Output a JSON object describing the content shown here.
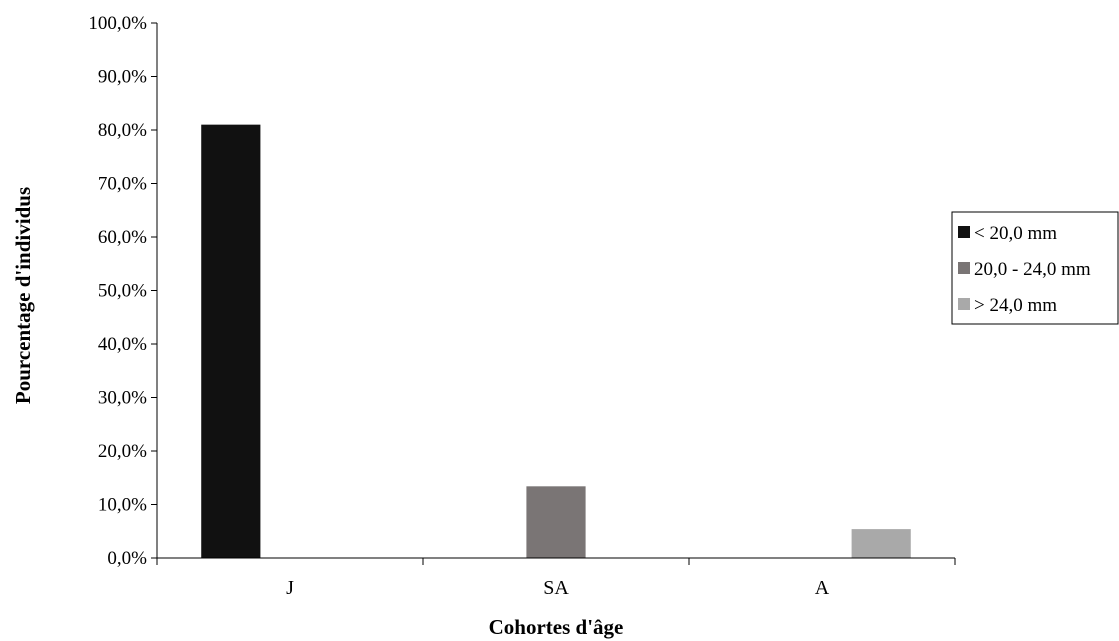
{
  "chart_data": {
    "type": "bar",
    "categories": [
      "J",
      "SA",
      "A"
    ],
    "series": [
      {
        "name": "< 20,0 mm",
        "values": [
          81.0,
          0,
          0
        ],
        "color": "#111111"
      },
      {
        "name": "20,0 - 24,0 mm",
        "values": [
          0,
          13.4,
          0
        ],
        "color": "#7a7575"
      },
      {
        "name": "> 24,0 mm",
        "values": [
          0,
          0,
          5.4
        ],
        "color": "#a9a9a9"
      }
    ],
    "title": "",
    "xlabel": "Cohortes d'âge",
    "ylabel": "Pourcentage d'individus",
    "ylim": [
      0,
      100
    ],
    "yticks": [
      0,
      10,
      20,
      30,
      40,
      50,
      60,
      70,
      80,
      90,
      100
    ],
    "ytick_labels": [
      "0,0%",
      "10,0%",
      "20,0%",
      "30,0%",
      "40,0%",
      "50,0%",
      "60,0%",
      "70,0%",
      "80,0%",
      "90,0%",
      "100,0%"
    ],
    "grid": false,
    "legend_position": "right"
  }
}
